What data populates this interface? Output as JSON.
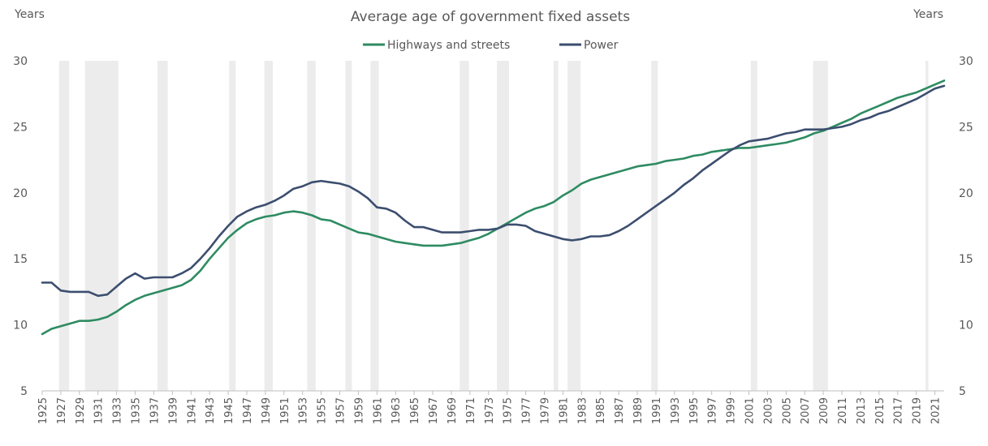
{
  "chart_data": {
    "type": "line",
    "title": "Average age of government fixed assets",
    "ylabel_left": "Years",
    "ylabel_right": "Years",
    "xlabel": "",
    "ylim": [
      5,
      30
    ],
    "yticks": [
      5,
      10,
      15,
      20,
      25,
      30
    ],
    "xlim": [
      1925,
      2022
    ],
    "x_tick_start": 1925,
    "x_tick_end": 2021,
    "x_tick_step": 2,
    "legend_position": "top-center",
    "grid": false,
    "x": [
      1925,
      1926,
      1927,
      1928,
      1929,
      1930,
      1931,
      1932,
      1933,
      1934,
      1935,
      1936,
      1937,
      1938,
      1939,
      1940,
      1941,
      1942,
      1943,
      1944,
      1945,
      1946,
      1947,
      1948,
      1949,
      1950,
      1951,
      1952,
      1953,
      1954,
      1955,
      1956,
      1957,
      1958,
      1959,
      1960,
      1961,
      1962,
      1963,
      1964,
      1965,
      1966,
      1967,
      1968,
      1969,
      1970,
      1971,
      1972,
      1973,
      1974,
      1975,
      1976,
      1977,
      1978,
      1979,
      1980,
      1981,
      1982,
      1983,
      1984,
      1985,
      1986,
      1987,
      1988,
      1989,
      1990,
      1991,
      1992,
      1993,
      1994,
      1995,
      1996,
      1997,
      1998,
      1999,
      2000,
      2001,
      2002,
      2003,
      2004,
      2005,
      2006,
      2007,
      2008,
      2009,
      2010,
      2011,
      2012,
      2013,
      2014,
      2015,
      2016,
      2017,
      2018,
      2019,
      2020,
      2021,
      2022
    ],
    "recessions": [
      [
        1926.8,
        1927.9
      ],
      [
        1929.6,
        1933.2
      ],
      [
        1937.4,
        1938.5
      ],
      [
        1945.1,
        1945.8
      ],
      [
        1948.9,
        1949.8
      ],
      [
        1953.5,
        1954.4
      ],
      [
        1957.6,
        1958.3
      ],
      [
        1960.3,
        1961.2
      ],
      [
        1969.9,
        1970.9
      ],
      [
        1973.9,
        1975.2
      ],
      [
        1980.0,
        1980.5
      ],
      [
        1981.5,
        1982.9
      ],
      [
        1990.5,
        1991.2
      ],
      [
        2001.2,
        2001.9
      ],
      [
        2007.9,
        2009.5
      ],
      [
        2020.0,
        2020.3
      ]
    ],
    "series": [
      {
        "name": "Highways and streets",
        "color": "#2E8B62",
        "values": [
          9.3,
          9.7,
          9.9,
          10.1,
          10.3,
          10.3,
          10.4,
          10.6,
          11.0,
          11.5,
          11.9,
          12.2,
          12.4,
          12.6,
          12.8,
          13.0,
          13.4,
          14.1,
          15.0,
          15.8,
          16.6,
          17.2,
          17.7,
          18.0,
          18.2,
          18.3,
          18.5,
          18.6,
          18.5,
          18.3,
          18.0,
          17.9,
          17.6,
          17.3,
          17.0,
          16.9,
          16.7,
          16.5,
          16.3,
          16.2,
          16.1,
          16.0,
          16.0,
          16.0,
          16.1,
          16.2,
          16.4,
          16.6,
          16.9,
          17.3,
          17.7,
          18.1,
          18.5,
          18.8,
          19.0,
          19.3,
          19.8,
          20.2,
          20.7,
          21.0,
          21.2,
          21.4,
          21.6,
          21.8,
          22.0,
          22.1,
          22.2,
          22.4,
          22.5,
          22.6,
          22.8,
          22.9,
          23.1,
          23.2,
          23.3,
          23.4,
          23.4,
          23.5,
          23.6,
          23.7,
          23.8,
          24.0,
          24.2,
          24.5,
          24.7,
          25.0,
          25.3,
          25.6,
          26.0,
          26.3,
          26.6,
          26.9,
          27.2,
          27.4,
          27.6,
          27.9,
          28.2,
          28.5
        ]
      },
      {
        "name": "Power",
        "color": "#3C4E6F",
        "values": [
          13.2,
          13.2,
          12.6,
          12.5,
          12.5,
          12.5,
          12.2,
          12.3,
          12.9,
          13.5,
          13.9,
          13.5,
          13.6,
          13.6,
          13.6,
          13.9,
          14.3,
          15.0,
          15.8,
          16.7,
          17.5,
          18.2,
          18.6,
          18.9,
          19.1,
          19.4,
          19.8,
          20.3,
          20.5,
          20.8,
          20.9,
          20.8,
          20.7,
          20.5,
          20.1,
          19.6,
          18.9,
          18.8,
          18.5,
          17.9,
          17.4,
          17.4,
          17.2,
          17.0,
          17.0,
          17.0,
          17.1,
          17.2,
          17.2,
          17.3,
          17.6,
          17.6,
          17.5,
          17.1,
          16.9,
          16.7,
          16.5,
          16.4,
          16.5,
          16.7,
          16.7,
          16.8,
          17.1,
          17.5,
          18.0,
          18.5,
          19.0,
          19.5,
          20.0,
          20.6,
          21.1,
          21.7,
          22.2,
          22.7,
          23.2,
          23.6,
          23.9,
          24.0,
          24.1,
          24.3,
          24.5,
          24.6,
          24.8,
          24.8,
          24.8,
          24.9,
          25.0,
          25.2,
          25.5,
          25.7,
          26.0,
          26.2,
          26.5,
          26.8,
          27.1,
          27.5,
          27.9,
          28.1
        ]
      }
    ]
  }
}
